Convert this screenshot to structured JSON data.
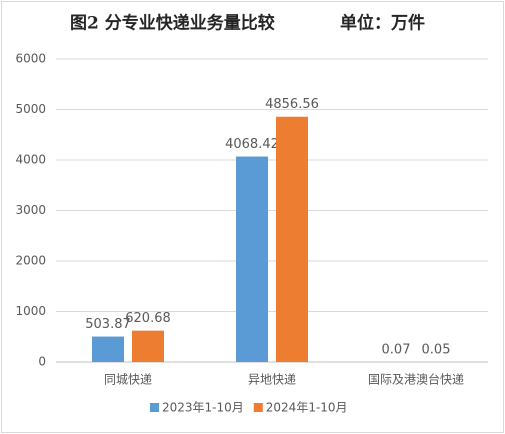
{
  "chart_data": {
    "type": "bar",
    "title": "图2 分专业快递业务量比较",
    "unit": "单位：万件",
    "categories": [
      "同城快递",
      "异地快递",
      "国际及港澳台快递"
    ],
    "series": [
      {
        "name": "2023年1-10月",
        "color": "#5b9bd5",
        "values": [
          503.87,
          4068.42,
          0.07
        ]
      },
      {
        "name": "2024年1-10月",
        "color": "#ed7d31",
        "values": [
          620.68,
          4856.56,
          0.05
        ]
      }
    ],
    "ylim": [
      0,
      6000
    ],
    "yticks": [
      0,
      1000,
      2000,
      3000,
      4000,
      5000,
      6000
    ],
    "grid": true,
    "legend": "bottom"
  }
}
